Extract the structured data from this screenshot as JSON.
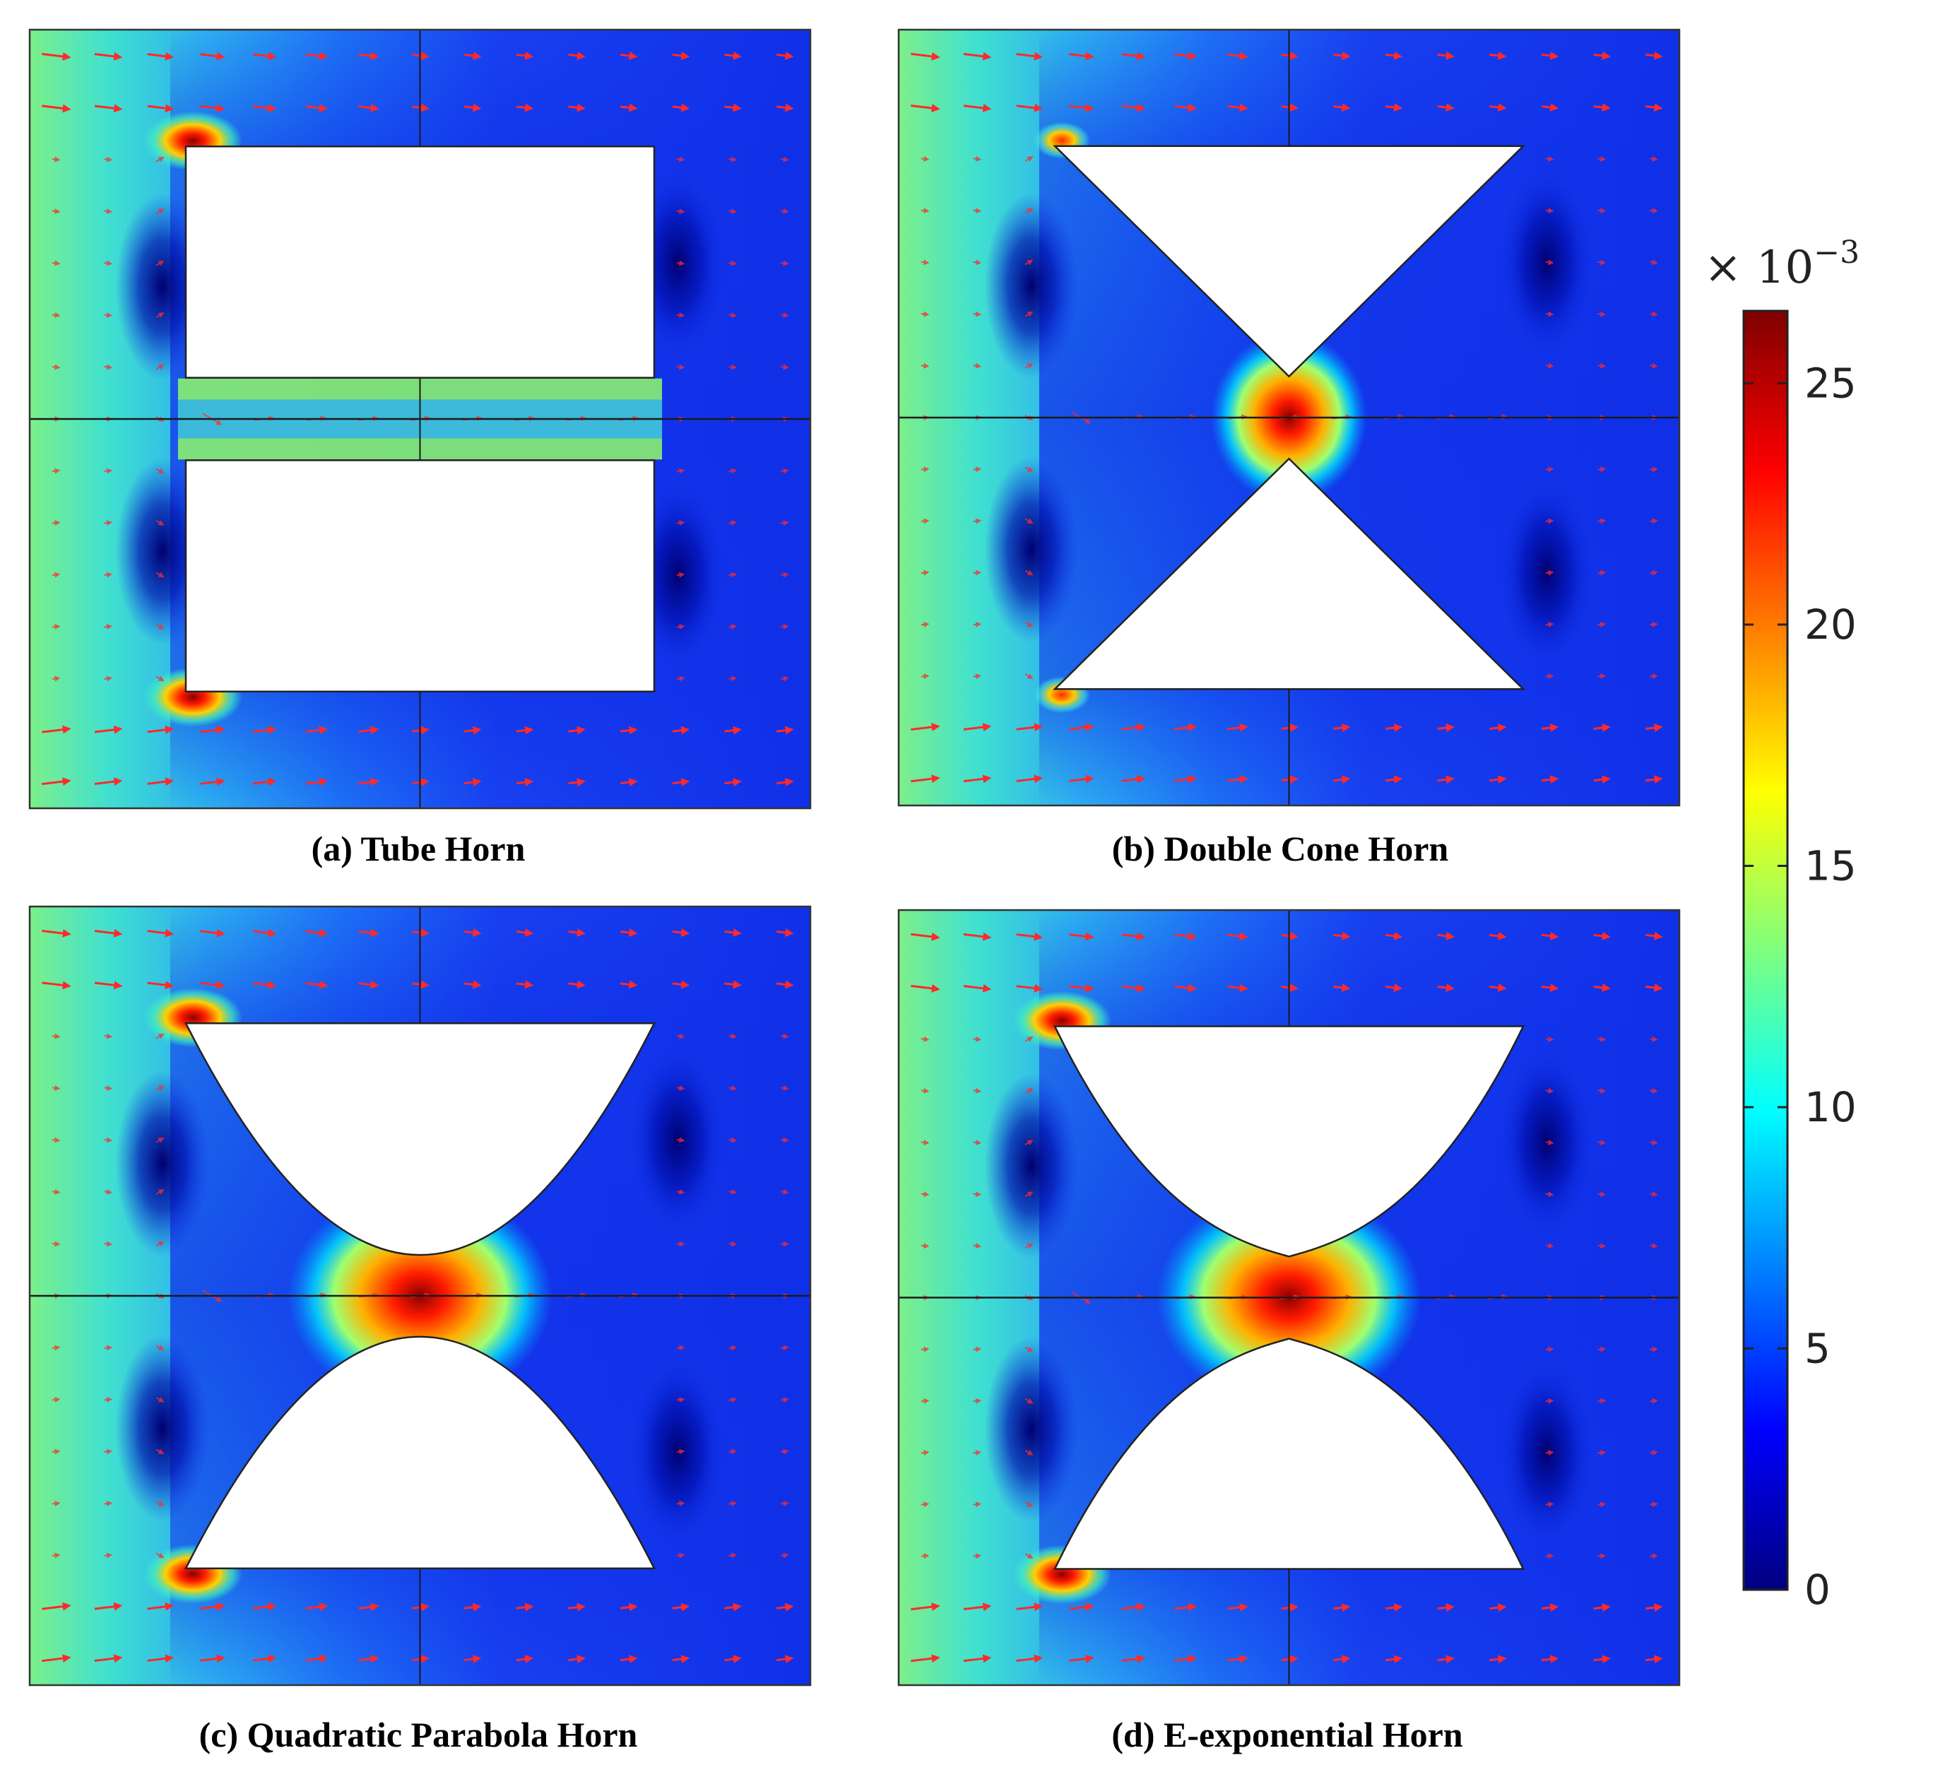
{
  "panels": [
    {
      "id": "a",
      "caption": "(a) Tube Horn",
      "shape": "tube"
    },
    {
      "id": "b",
      "caption": "(b) Double Cone Horn",
      "shape": "cone"
    },
    {
      "id": "c",
      "caption": "(c) Quadratic Parabola Horn",
      "shape": "parabola"
    },
    {
      "id": "d",
      "caption": "(d) E-exponential Horn",
      "shape": "exponential"
    }
  ],
  "colorbar": {
    "multiplier": "× 10",
    "exponent": "−3",
    "ticks": [
      "0",
      "5",
      "10",
      "15",
      "20",
      "25"
    ],
    "tick_values": [
      0,
      5,
      10,
      15,
      20,
      25
    ],
    "max": 26.5,
    "colormap": [
      "#00007f",
      "#0000ff",
      "#007fff",
      "#00ffff",
      "#7fff7f",
      "#ffff00",
      "#ff7f00",
      "#ff0000",
      "#7f0000"
    ]
  },
  "colors": {
    "background_field": "#1e3cf0",
    "arrow": "#ff2a2a",
    "hot": "#ff2000",
    "warm": "#ffe000",
    "cyan": "#00e8ff"
  }
}
